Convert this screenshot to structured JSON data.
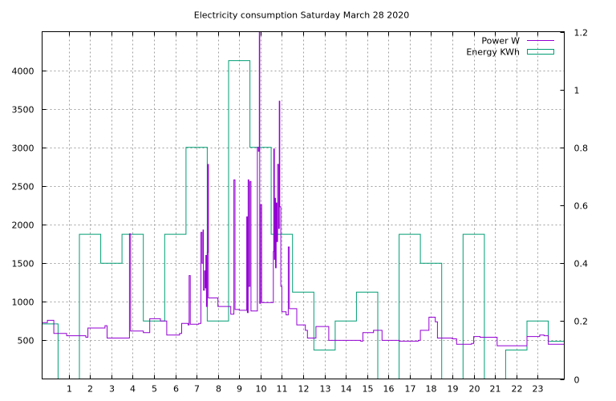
{
  "chart_data": {
    "type": "line",
    "title": "Electricity consumption Saturday March 28 2020",
    "grid": true,
    "legend_position": "top-right",
    "x_ticks": [
      1,
      2,
      3,
      4,
      5,
      6,
      7,
      8,
      9,
      10,
      11,
      12,
      13,
      14,
      15,
      16,
      17,
      18,
      19,
      20,
      21,
      22,
      23
    ],
    "xlim": [
      -0.25,
      24.25
    ],
    "y_left": {
      "ticks": [
        500,
        1000,
        1500,
        2000,
        2500,
        3000,
        3500,
        4000
      ],
      "range": [
        0,
        4500
      ]
    },
    "y_right": {
      "ticks": [
        "0",
        "0.2",
        "0.4",
        "0.6",
        "0.8",
        "1",
        "1.2"
      ],
      "values": [
        0,
        0.2,
        0.4,
        0.6,
        0.8,
        1.0,
        1.2
      ],
      "range": [
        0,
        1.2
      ]
    },
    "series": [
      {
        "name": "Power W",
        "color": "#9400d3",
        "axis": "left",
        "style": "steps",
        "points": [
          [
            -0.25,
            730
          ],
          [
            0.0,
            760
          ],
          [
            0.3,
            590
          ],
          [
            0.9,
            560
          ],
          [
            1.8,
            540
          ],
          [
            1.9,
            660
          ],
          [
            2.7,
            690
          ],
          [
            2.8,
            530
          ],
          [
            3.8,
            530
          ],
          [
            3.85,
            1880
          ],
          [
            3.9,
            620
          ],
          [
            4.5,
            600
          ],
          [
            4.8,
            780
          ],
          [
            5.3,
            750
          ],
          [
            5.6,
            570
          ],
          [
            6.2,
            590
          ],
          [
            6.3,
            720
          ],
          [
            6.6,
            700
          ],
          [
            6.65,
            1340
          ],
          [
            6.7,
            710
          ],
          [
            7.1,
            720
          ],
          [
            7.2,
            1900
          ],
          [
            7.25,
            1500
          ],
          [
            7.3,
            1930
          ],
          [
            7.32,
            1150
          ],
          [
            7.37,
            1400
          ],
          [
            7.4,
            1180
          ],
          [
            7.43,
            1600
          ],
          [
            7.46,
            940
          ],
          [
            7.5,
            1640
          ],
          [
            7.52,
            2780
          ],
          [
            7.55,
            1050
          ],
          [
            8.0,
            940
          ],
          [
            8.6,
            840
          ],
          [
            8.75,
            2580
          ],
          [
            8.8,
            900
          ],
          [
            9.0,
            890
          ],
          [
            9.35,
            2100
          ],
          [
            9.38,
            860
          ],
          [
            9.42,
            2580
          ],
          [
            9.45,
            1200
          ],
          [
            9.5,
            2560
          ],
          [
            9.55,
            880
          ],
          [
            9.85,
            3000
          ],
          [
            9.9,
            2950
          ],
          [
            9.94,
            4500
          ],
          [
            9.96,
            980
          ],
          [
            10.0,
            2260
          ],
          [
            10.05,
            990
          ],
          [
            10.6,
            1650
          ],
          [
            10.62,
            2980
          ],
          [
            10.65,
            1550
          ],
          [
            10.68,
            2340
          ],
          [
            10.7,
            1440
          ],
          [
            10.73,
            2280
          ],
          [
            10.76,
            1780
          ],
          [
            10.8,
            2780
          ],
          [
            10.85,
            1950
          ],
          [
            10.88,
            3600
          ],
          [
            10.9,
            2230
          ],
          [
            10.95,
            1200
          ],
          [
            11.0,
            870
          ],
          [
            11.2,
            830
          ],
          [
            11.3,
            1710
          ],
          [
            11.35,
            910
          ],
          [
            11.7,
            700
          ],
          [
            12.1,
            630
          ],
          [
            12.2,
            530
          ],
          [
            12.6,
            680
          ],
          [
            13.2,
            500
          ],
          [
            14.0,
            500
          ],
          [
            14.7,
            490
          ],
          [
            14.8,
            600
          ],
          [
            15.3,
            630
          ],
          [
            15.7,
            500
          ],
          [
            16.5,
            490
          ],
          [
            17.4,
            500
          ],
          [
            17.5,
            630
          ],
          [
            17.8,
            630
          ],
          [
            17.9,
            800
          ],
          [
            18.2,
            740
          ],
          [
            18.3,
            530
          ],
          [
            19.0,
            520
          ],
          [
            19.2,
            450
          ],
          [
            19.9,
            460
          ],
          [
            20.0,
            550
          ],
          [
            20.3,
            540
          ],
          [
            21.1,
            430
          ],
          [
            22.5,
            550
          ],
          [
            23.1,
            570
          ],
          [
            23.3,
            560
          ],
          [
            23.5,
            450
          ],
          [
            24.25,
            450
          ]
        ]
      },
      {
        "name": "Energy KWh",
        "color": "#009e73",
        "axis": "right",
        "style": "histeps",
        "points": [
          [
            0,
            0.19
          ],
          [
            1,
            0
          ],
          [
            2,
            0.5
          ],
          [
            3,
            0.4
          ],
          [
            4,
            0.5
          ],
          [
            5,
            0.2
          ],
          [
            6,
            0.5
          ],
          [
            7,
            0.8
          ],
          [
            8,
            0.2
          ],
          [
            9,
            1.1
          ],
          [
            10,
            0.8
          ],
          [
            11,
            0.5
          ],
          [
            12,
            0.3
          ],
          [
            13,
            0.1
          ],
          [
            14,
            0.2
          ],
          [
            15,
            0.3
          ],
          [
            16,
            0
          ],
          [
            17,
            0.5
          ],
          [
            18,
            0.4
          ],
          [
            19,
            0
          ],
          [
            20,
            0.5
          ],
          [
            21,
            0
          ],
          [
            22,
            0.1
          ],
          [
            23,
            0.2
          ],
          [
            24,
            0.13
          ]
        ]
      }
    ]
  }
}
